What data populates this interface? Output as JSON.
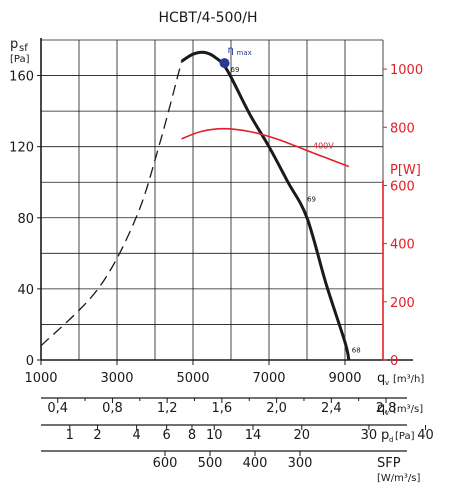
{
  "chart_data": {
    "type": "line",
    "title": "HCBT/4-500/H",
    "x_axis": {
      "label": "q",
      "label_sub": "v",
      "unit": "[m³/h]",
      "range": [
        1000,
        10000
      ],
      "ticks": [
        "1000",
        "3000",
        "5000",
        "7000",
        "9000"
      ]
    },
    "y_axis": {
      "label": "p",
      "label_sub": "sf",
      "unit": "[Pa]",
      "range": [
        0,
        180
      ],
      "ticks": [
        "0",
        "40",
        "80",
        "120",
        "160"
      ]
    },
    "y2_axis": {
      "label": "P[W]",
      "range": [
        0,
        1100
      ],
      "ticks": [
        "0",
        "200",
        "400",
        "600",
        "800",
        "1000"
      ],
      "color": "#e0202a"
    },
    "extra_scales": [
      {
        "label": "q",
        "label_sub": "v",
        "unit": "[m³/s]",
        "ticks": [
          {
            "label": "0,4",
            "value": 0.4
          },
          {
            "label": "0,8",
            "value": 0.8
          },
          {
            "label": "1,2",
            "value": 1.2
          },
          {
            "label": "1,6",
            "value": 1.6
          },
          {
            "label": "2,0",
            "value": 2.0
          },
          {
            "label": "2,4",
            "value": 2.4
          },
          {
            "label": "2,8",
            "value": 2.8
          }
        ]
      },
      {
        "label": "p",
        "label_sub": "d",
        "unit": "[Pa]",
        "ticks": [
          {
            "label": "1",
            "value": 1
          },
          {
            "label": "2",
            "value": 2
          },
          {
            "label": "4",
            "value": 4
          },
          {
            "label": "6",
            "value": 6
          },
          {
            "label": "8",
            "value": 8
          },
          {
            "label": "10",
            "value": 10
          },
          {
            "label": "14",
            "value": 14
          },
          {
            "label": "20",
            "value": 20
          },
          {
            "label": "30",
            "value": 30
          },
          {
            "label": "40",
            "value": 40
          }
        ]
      },
      {
        "label": "SFP",
        "unit": "[W/m³/s]",
        "ticks": [
          {
            "label": "600",
            "value": 600
          },
          {
            "label": "500",
            "value": 500
          },
          {
            "label": "400",
            "value": 400
          },
          {
            "label": "300",
            "value": 300
          }
        ]
      }
    ],
    "series": [
      {
        "role": "pressure-unstable",
        "style": "dashed",
        "color": "#1a1a1a",
        "points": [
          [
            1000,
            8
          ],
          [
            2500,
            40
          ],
          [
            3500,
            80
          ],
          [
            4100,
            120
          ],
          [
            4700,
            168
          ]
        ]
      },
      {
        "role": "pressure",
        "style": "solid",
        "color": "#1a1a1a",
        "points": [
          [
            4700,
            168
          ],
          [
            5000,
            172
          ],
          [
            5300,
            173
          ],
          [
            5600,
            170
          ],
          [
            5900,
            163
          ],
          [
            6500,
            138
          ],
          [
            7000,
            120
          ],
          [
            7500,
            100
          ],
          [
            8000,
            80
          ],
          [
            8500,
            43
          ],
          [
            9000,
            10
          ],
          [
            9100,
            0
          ]
        ]
      },
      {
        "name": "400V",
        "role": "power",
        "style": "solid",
        "color": "#e0202a",
        "points": [
          [
            4700,
            760
          ],
          [
            5200,
            785
          ],
          [
            5800,
            795
          ],
          [
            6500,
            785
          ],
          [
            7200,
            760
          ],
          [
            8000,
            720
          ],
          [
            8500,
            695
          ],
          [
            9100,
            665
          ]
        ]
      }
    ],
    "annotations": [
      {
        "label": "η",
        "sub": "max",
        "x": 5830,
        "y": 167
      },
      {
        "label": "69",
        "x": 5830,
        "y": 167
      },
      {
        "label": "69",
        "x": 7950,
        "y": 88
      },
      {
        "label": "68",
        "x": 9100,
        "y": 2
      }
    ],
    "markers": [
      {
        "name": "eta-max-point",
        "x": 5830,
        "y": 167,
        "color": "#2b3a9a"
      }
    ],
    "grid": true
  }
}
